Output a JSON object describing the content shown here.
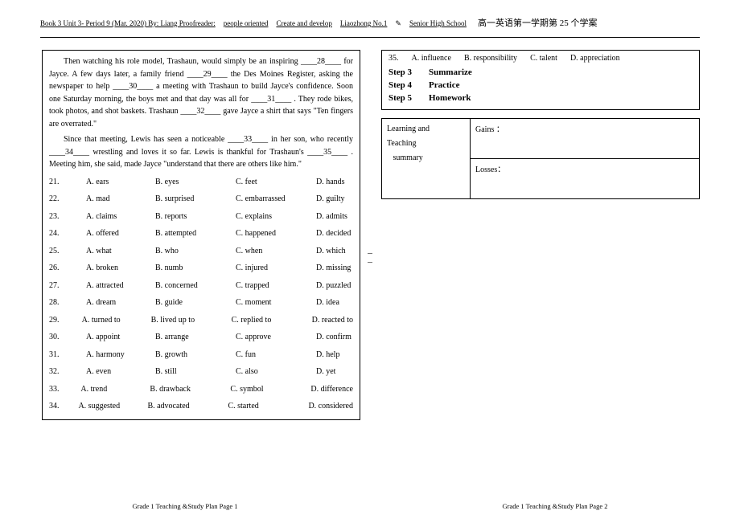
{
  "header": {
    "left": "Book 3 Unit 3- Period 9  (Mar. 2020)    By: Liang    Proofreader:",
    "mid1": "people oriented",
    "mid2": "Create and develop",
    "mid3": "Liaozhong No.1",
    "mid4": "Senior High School",
    "right": "高一英语第一学期第 25 个学案"
  },
  "left_box": {
    "paragraphs": [
      "Then watching his role model, Trashaun, would simply be an inspiring ____28____ for Jayce. A few days later, a family friend ____29____ the Des Moines Register, asking the newspaper to help ____30____ a meeting with Trashaun to build Jayce's confidence. Soon one Saturday morning, the boys met and that day was all for ____31____ . They rode bikes, took photos, and shot baskets. Trashaun ____32____ gave Jayce a shirt that says \"Ten fingers are overrated.\"",
      "Since that meeting, Lewis has seen a noticeable ____33____ in her son, who recently ____34____ wrestling and loves it so far. Lewis is thankful for Trashaun's ____35____ . Meeting him, she said, made Jayce \"understand that there are others like him.\""
    ],
    "questions": [
      {
        "n": "21.",
        "a": "A. ears",
        "b": "B. eyes",
        "c": "C. feet",
        "d": "D. hands"
      },
      {
        "n": "22.",
        "a": "A. mad",
        "b": "B. surprised",
        "c": "C. embarrassed",
        "d": "D. guilty"
      },
      {
        "n": "23.",
        "a": "A. claims",
        "b": "B. reports",
        "c": "C. explains",
        "d": "D. admits"
      },
      {
        "n": "24.",
        "a": "A. offered",
        "b": "B. attempted",
        "c": "C. happened",
        "d": "D. decided"
      },
      {
        "n": "25.",
        "a": "A. what",
        "b": "B. who",
        "c": "C. when",
        "d": "D. which"
      },
      {
        "n": "26.",
        "a": "A. broken",
        "b": "B. numb",
        "c": "C. injured",
        "d": "D. missing"
      },
      {
        "n": "27.",
        "a": "A. attracted",
        "b": "B. concerned",
        "c": "C. trapped",
        "d": "D. puzzled"
      },
      {
        "n": "28.",
        "a": "A. dream",
        "b": "B. guide",
        "c": "C. moment",
        "d": "D. idea"
      },
      {
        "n": "29.",
        "a": "A. turned to",
        "b": "B. lived up to",
        "c": "C. replied to",
        "d": "D. reacted to"
      },
      {
        "n": "30.",
        "a": "A. appoint",
        "b": "B. arrange",
        "c": "C. approve",
        "d": "D. confirm"
      },
      {
        "n": "31.",
        "a": "A. harmony",
        "b": "B. growth",
        "c": "C. fun",
        "d": "D. help"
      },
      {
        "n": "32.",
        "a": "A. even",
        "b": "B. still",
        "c": "C. also",
        "d": "D. yet"
      },
      {
        "n": "33.",
        "a": "A. trend",
        "b": "B. drawback",
        "c": "C. symbol",
        "d": "D. difference"
      },
      {
        "n": "34.",
        "a": "A. suggested",
        "b": "B. advocated",
        "c": "C. started",
        "d": "D. considered"
      }
    ]
  },
  "right_box": {
    "q35": {
      "n": "35.",
      "a": "A. influence",
      "b": "B. responsibility",
      "c": "C. talent",
      "d": "D. appreciation"
    },
    "steps": [
      {
        "label": "Step 3",
        "title": "Summarize"
      },
      {
        "label": "Step 4",
        "title": "Practice"
      },
      {
        "label": "Step 5",
        "title": "Homework"
      }
    ],
    "summary": {
      "left": "Learning and\nTeaching\n   summary",
      "gains": "Gains ：",
      "losses": "Losses："
    }
  },
  "footer": {
    "left": "Grade 1 Teaching &Study Plan Page 1",
    "right": "Grade 1 Teaching &Study Plan Page 2"
  }
}
